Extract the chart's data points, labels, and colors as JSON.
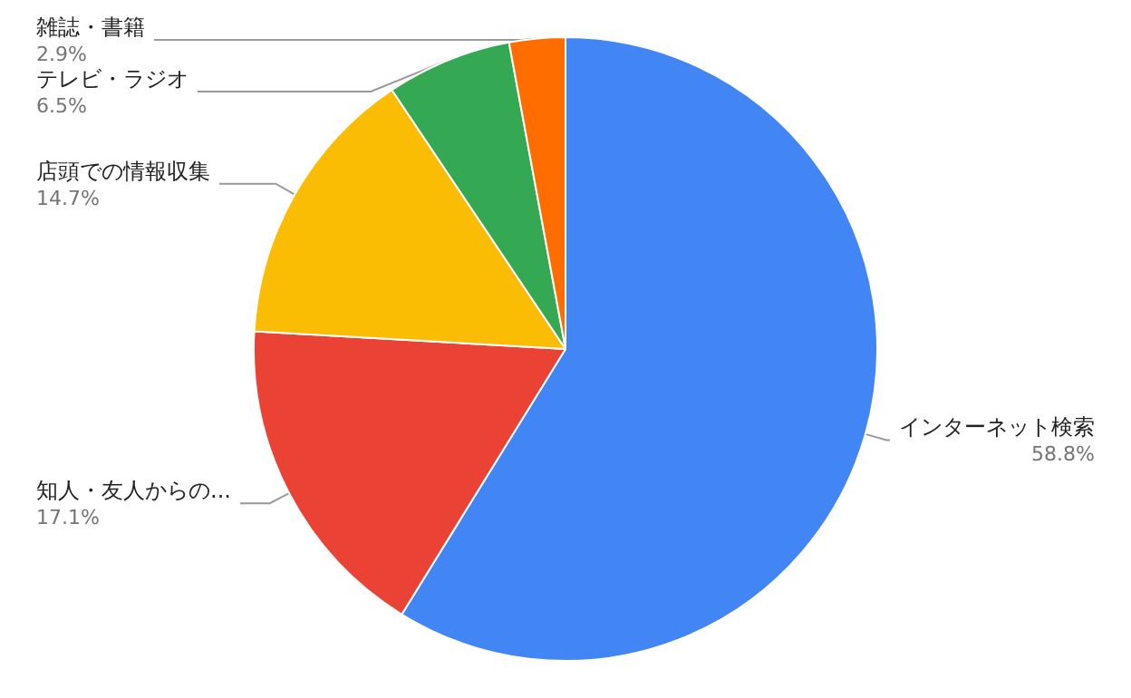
{
  "chart_data": {
    "type": "pie",
    "categories": [
      "インターネット検索",
      "知人・友人からの...",
      "店頭での情報収集",
      "テレビ・ラジオ",
      "雑誌・書籍"
    ],
    "values": [
      58.8,
      17.1,
      14.7,
      6.5,
      2.9
    ],
    "value_labels": [
      "58.8%",
      "17.1%",
      "14.7%",
      "6.5%",
      "2.9%"
    ],
    "colors": [
      "#4285f4",
      "#ea4335",
      "#fbbc04",
      "#34a853",
      "#ff6d01"
    ],
    "legend": false
  }
}
